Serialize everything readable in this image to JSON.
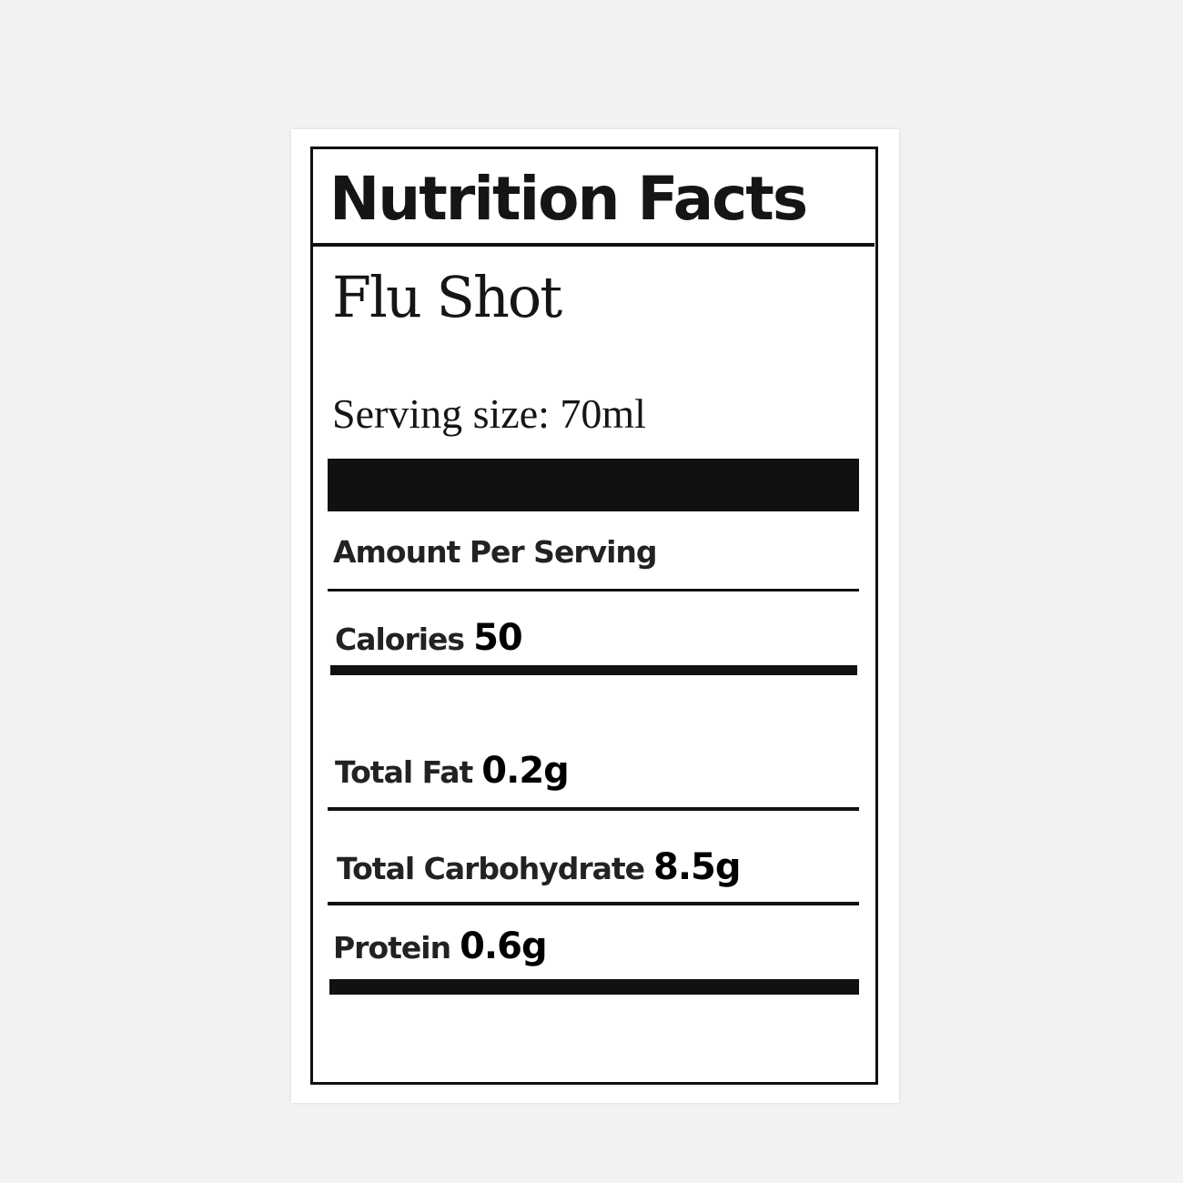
{
  "label": {
    "title": "Nutrition Facts",
    "product": "Flu Shot",
    "serving_size": "Serving size: 70ml",
    "amount_header": "Amount Per Serving",
    "rows": [
      {
        "name": "Calories",
        "value": "50"
      },
      {
        "name": "Total Fat",
        "value": "0.2g"
      },
      {
        "name": "Total Carbohydrate",
        "value": "8.5g"
      },
      {
        "name": "Protein",
        "value": "0.6g"
      }
    ]
  }
}
